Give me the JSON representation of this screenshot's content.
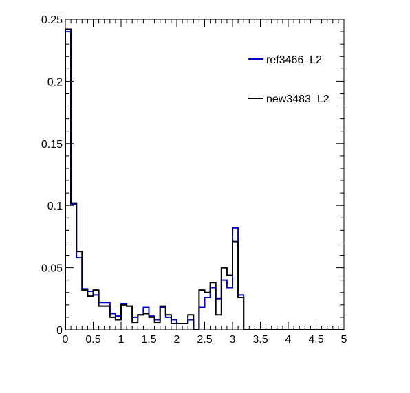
{
  "chart_data": {
    "type": "histogram",
    "xlim": [
      0,
      5
    ],
    "ylim": [
      0,
      0.25
    ],
    "bin_width": 0.1,
    "x_ticks": [
      {
        "value": 0,
        "label": "0"
      },
      {
        "value": 0.5,
        "label": "0.5"
      },
      {
        "value": 1,
        "label": "1"
      },
      {
        "value": 1.5,
        "label": "1.5"
      },
      {
        "value": 2,
        "label": "2"
      },
      {
        "value": 2.5,
        "label": "2.5"
      },
      {
        "value": 3,
        "label": "3"
      },
      {
        "value": 3.5,
        "label": "3.5"
      },
      {
        "value": 4,
        "label": "4"
      },
      {
        "value": 4.5,
        "label": "4.5"
      },
      {
        "value": 5,
        "label": "5"
      }
    ],
    "y_ticks": [
      {
        "value": 0,
        "label": "0"
      },
      {
        "value": 0.05,
        "label": "0.05"
      },
      {
        "value": 0.1,
        "label": "0.1"
      },
      {
        "value": 0.15,
        "label": "0.15"
      },
      {
        "value": 0.2,
        "label": "0.2"
      },
      {
        "value": 0.25,
        "label": "0.25"
      }
    ],
    "legend_placement": "top-right",
    "grid": false,
    "series": [
      {
        "name": "ref3466_L2",
        "color": "#0000cc",
        "values": [
          0.24,
          0.101,
          0.058,
          0.033,
          0.031,
          0.028,
          0.022,
          0.022,
          0.013,
          0.011,
          0.021,
          0.019,
          0.01,
          0.012,
          0.018,
          0.011,
          0.008,
          0.018,
          0.01,
          0.008,
          0.005,
          0.005,
          0.008,
          0.0,
          0.018,
          0.026,
          0.034,
          0.025,
          0.04,
          0.034,
          0.082,
          0.028,
          0,
          0,
          0,
          0,
          0,
          0,
          0,
          0,
          0,
          0,
          0,
          0,
          0,
          0,
          0,
          0,
          0,
          0
        ]
      },
      {
        "name": "new3483_L2",
        "color": "#000000",
        "values": [
          0.242,
          0.102,
          0.063,
          0.032,
          0.027,
          0.032,
          0.019,
          0.019,
          0.01,
          0.008,
          0.02,
          0.019,
          0.006,
          0.012,
          0.013,
          0.01,
          0.006,
          0.019,
          0.012,
          0.005,
          0.005,
          0.005,
          0.012,
          0.0,
          0.032,
          0.03,
          0.038,
          0.012,
          0.05,
          0.044,
          0.071,
          0.026,
          0,
          0,
          0,
          0,
          0,
          0,
          0,
          0,
          0,
          0,
          0,
          0,
          0,
          0,
          0,
          0,
          0,
          0
        ]
      }
    ]
  }
}
